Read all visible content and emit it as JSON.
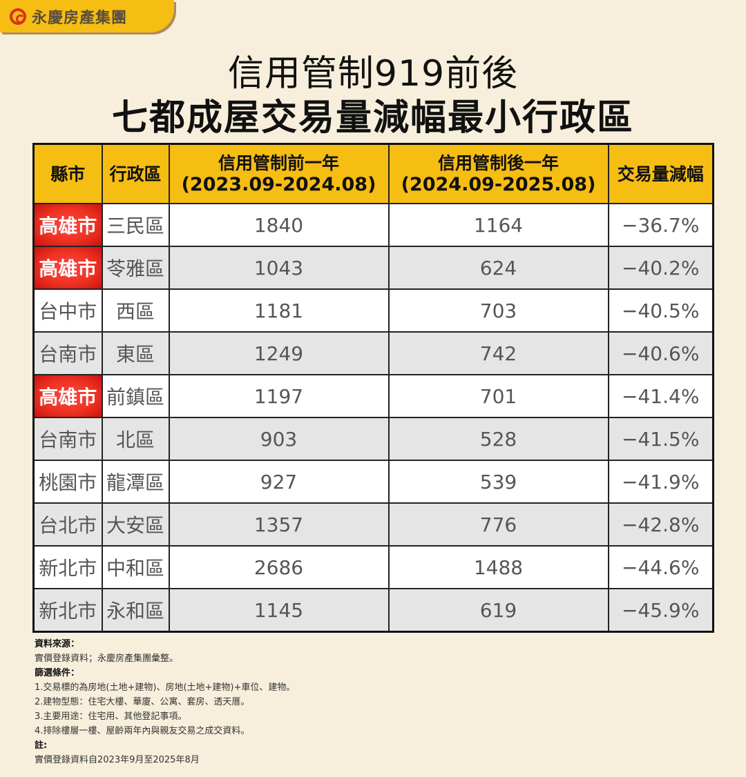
{
  "brand": {
    "name": "永慶房產集團",
    "logo": "yungching-logo-icon"
  },
  "title": {
    "line1": "信用管制919前後",
    "line2": "七都成屋交易量減幅最小行政區"
  },
  "colors": {
    "header": "#f6bd13",
    "highlight": "#e53322",
    "background": "#f7efdc"
  },
  "table": {
    "headers": {
      "county": "縣市",
      "district": "行政區",
      "before": {
        "label": "信用管制前一年",
        "period": "(2023.09-2024.08)"
      },
      "after": {
        "label": "信用管制後一年",
        "period": "(2024.09-2025.08)"
      },
      "change": "交易量減幅"
    },
    "rows": [
      {
        "county": "高雄市",
        "district": "三民區",
        "before": "1840",
        "after": "1164",
        "change": "−36.7%",
        "highlight": true
      },
      {
        "county": "高雄市",
        "district": "苓雅區",
        "before": "1043",
        "after": "624",
        "change": "−40.2%",
        "highlight": true
      },
      {
        "county": "台中市",
        "district": "西區",
        "before": "1181",
        "after": "703",
        "change": "−40.5%",
        "highlight": false
      },
      {
        "county": "台南市",
        "district": "東區",
        "before": "1249",
        "after": "742",
        "change": "−40.6%",
        "highlight": false
      },
      {
        "county": "高雄市",
        "district": "前鎮區",
        "before": "1197",
        "after": "701",
        "change": "−41.4%",
        "highlight": true
      },
      {
        "county": "台南市",
        "district": "北區",
        "before": "903",
        "after": "528",
        "change": "−41.5%",
        "highlight": false
      },
      {
        "county": "桃園市",
        "district": "龍潭區",
        "before": "927",
        "after": "539",
        "change": "−41.9%",
        "highlight": false
      },
      {
        "county": "台北市",
        "district": "大安區",
        "before": "1357",
        "after": "776",
        "change": "−42.8%",
        "highlight": false
      },
      {
        "county": "新北市",
        "district": "中和區",
        "before": "2686",
        "after": "1488",
        "change": "−44.6%",
        "highlight": false
      },
      {
        "county": "新北市",
        "district": "永和區",
        "before": "1145",
        "after": "619",
        "change": "−45.9%",
        "highlight": false
      }
    ]
  },
  "notes": {
    "source_heading": "資料來源：",
    "source_text": "實價登錄資料；永慶房產集團彙整。",
    "filter_heading": "篩選條件：",
    "filters": [
      "1.交易標的為房地(土地+建物)、房地(土地+建物)+車位、建物。",
      "2.建物型態：住宅大樓、華廈、公寓、套房、透天厝。",
      "3.主要用途：住宅用、其他登記事項。",
      "4.排除樓層一樓、屋齡兩年內與親友交易之成交資料。"
    ],
    "note_heading": "註:",
    "note_text": "實價登錄資料自2023年9月至2025年8月"
  }
}
